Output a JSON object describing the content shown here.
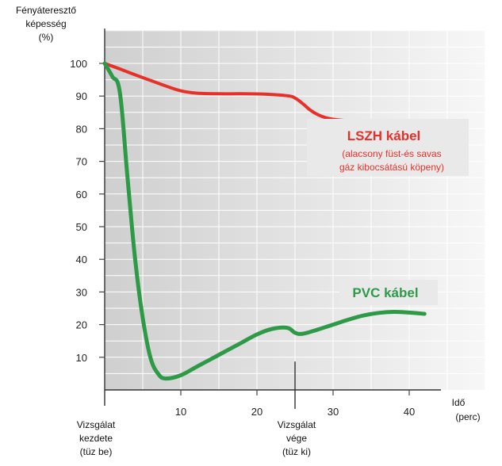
{
  "chart_data": {
    "type": "line",
    "ylabel_lines": [
      "Fényáteresztő",
      "képesség",
      "(%)"
    ],
    "xlabel_lines": [
      "Idő",
      "(perc)"
    ],
    "xlim": [
      0,
      50
    ],
    "ylim": [
      0,
      110
    ],
    "x_ticks": [
      10,
      20,
      30,
      40
    ],
    "y_ticks": [
      10,
      20,
      30,
      40,
      50,
      60,
      70,
      80,
      90,
      100
    ],
    "grid": true,
    "annotations": {
      "start": {
        "x": 0,
        "lines": [
          "Vizsgálat",
          "kezdete",
          "(tüz be)"
        ]
      },
      "end": {
        "x": 25,
        "lines": [
          "Vizsgálat",
          "vége",
          "(tüz ki)"
        ]
      }
    },
    "series": [
      {
        "name": "LSZH kábel",
        "note_lines": [
          "(alacsony füst-és savas",
          "gáz kibocsátású köpeny)"
        ],
        "color": "#e8302a",
        "x": [
          0,
          2,
          4,
          6,
          8,
          10,
          12,
          15,
          18,
          21,
          24,
          25,
          26,
          27,
          28,
          29,
          30,
          32,
          35,
          38,
          41
        ],
        "y": [
          100,
          98.3,
          96.5,
          94.8,
          93.1,
          91.6,
          90.9,
          90.7,
          90.7,
          90.6,
          90.1,
          89.4,
          87.7,
          85.7,
          84.3,
          83.4,
          82.9,
          82.4,
          82.0,
          81.8,
          81.8
        ]
      },
      {
        "name": "PVC kábel",
        "color": "#2e9a48",
        "x": [
          0,
          1,
          2,
          3,
          4,
          5,
          6,
          7,
          8,
          10,
          12,
          14,
          16,
          18,
          20,
          22,
          24,
          25,
          26,
          28,
          30,
          32,
          34,
          36,
          38,
          40,
          42
        ],
        "y": [
          100,
          96,
          91,
          65,
          40,
          22,
          10,
          5,
          3.5,
          4.5,
          7,
          9.5,
          12,
          14.5,
          17,
          18.7,
          19.0,
          17.5,
          17.2,
          18.5,
          20.0,
          21.5,
          22.8,
          23.6,
          23.9,
          23.7,
          23.3
        ]
      }
    ]
  }
}
